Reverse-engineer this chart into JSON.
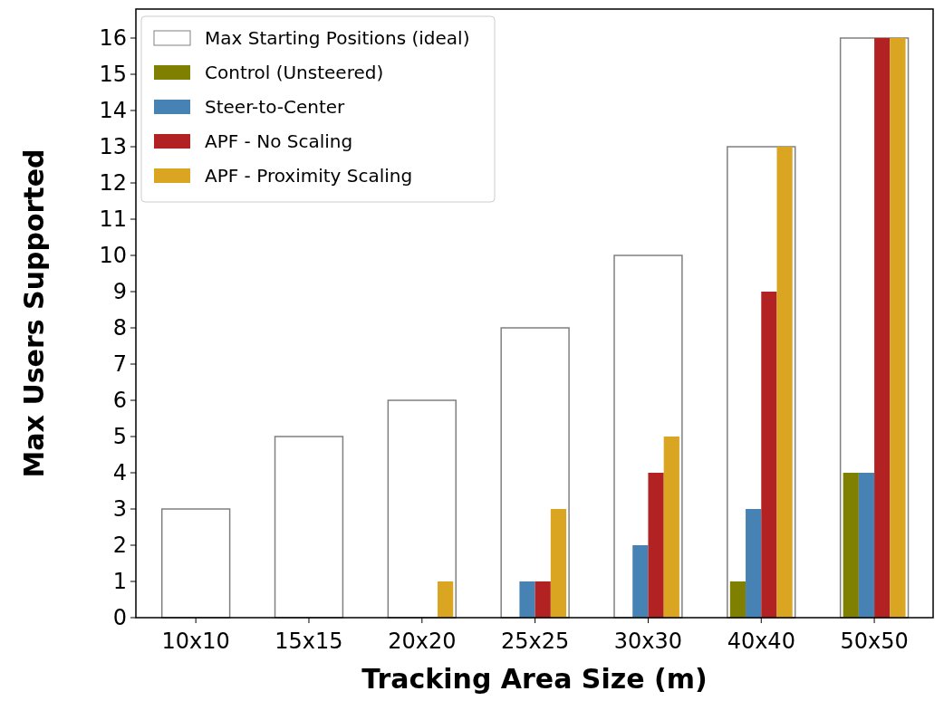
{
  "chart_data": {
    "type": "bar",
    "xlabel": "Tracking Area Size (m)",
    "ylabel": "Max Users Supported",
    "categories": [
      "10x10",
      "15x15",
      "20x20",
      "25x25",
      "30x30",
      "40x40",
      "50x50"
    ],
    "series": [
      {
        "name": "Max Starting Positions (ideal)",
        "color": "#ffffff",
        "values": [
          3,
          5,
          6,
          8,
          10,
          13,
          16
        ]
      },
      {
        "name": "Control (Unsteered)",
        "color": "#808000",
        "values": [
          0,
          0,
          0,
          0,
          0,
          1,
          4
        ]
      },
      {
        "name": "Steer-to-Center",
        "color": "#4682b4",
        "values": [
          0,
          0,
          0,
          1,
          2,
          3,
          4
        ]
      },
      {
        "name": "APF - No Scaling",
        "color": "#b22222",
        "values": [
          0,
          0,
          0,
          1,
          4,
          9,
          16
        ]
      },
      {
        "name": "APF - Proximity Scaling",
        "color": "#daa520",
        "values": [
          0,
          0,
          1,
          3,
          5,
          13,
          16
        ]
      }
    ],
    "ylim": [
      0,
      16.8
    ],
    "yticks": [
      0,
      1,
      2,
      3,
      4,
      5,
      6,
      7,
      8,
      9,
      10,
      11,
      12,
      13,
      14,
      15,
      16
    ],
    "grid": false,
    "legend": "top left"
  }
}
